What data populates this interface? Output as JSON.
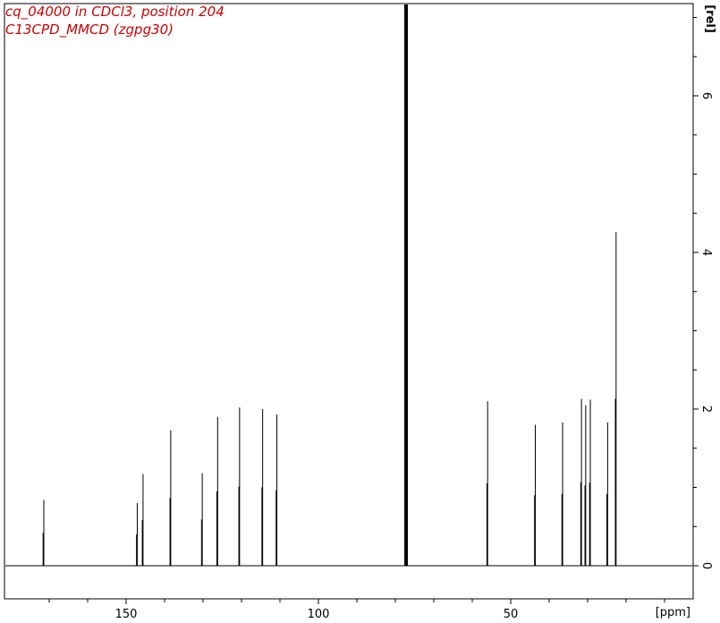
{
  "header": {
    "title_line1": "cq_04000 in CDCl3, position 204",
    "title_line2": "C13CPD_MMCD (zgpg30)",
    "title_color": "#cc0000"
  },
  "chart_data": {
    "type": "line",
    "title": "cq_04000 in CDCl3, position 204",
    "subtitle": "C13CPD_MMCD (zgpg30)",
    "xlabel": "[ppm]",
    "ylabel": "[rel]",
    "xlim": [
      177,
      -4
    ],
    "ylim": [
      -0.4,
      7.2
    ],
    "x_reversed": true,
    "x_ticks": [
      150,
      100,
      50
    ],
    "y_ticks": [
      0,
      2,
      4,
      6
    ],
    "grid": false,
    "line_color": "#000000",
    "peaks_ppm": [
      171.4,
      147.1,
      145.6,
      138.4,
      130.2,
      126.2,
      120.5,
      114.5,
      110.8,
      77.2,
      56.0,
      43.6,
      36.5,
      31.6,
      30.5,
      29.3,
      24.8,
      22.6
    ],
    "peak_heights": [
      0.84,
      0.8,
      1.17,
      1.73,
      1.18,
      1.9,
      2.02,
      2.0,
      1.93,
      7.2,
      2.1,
      1.8,
      1.83,
      2.13,
      2.05,
      2.12,
      1.83,
      4.26
    ],
    "baseline": 0.0
  }
}
